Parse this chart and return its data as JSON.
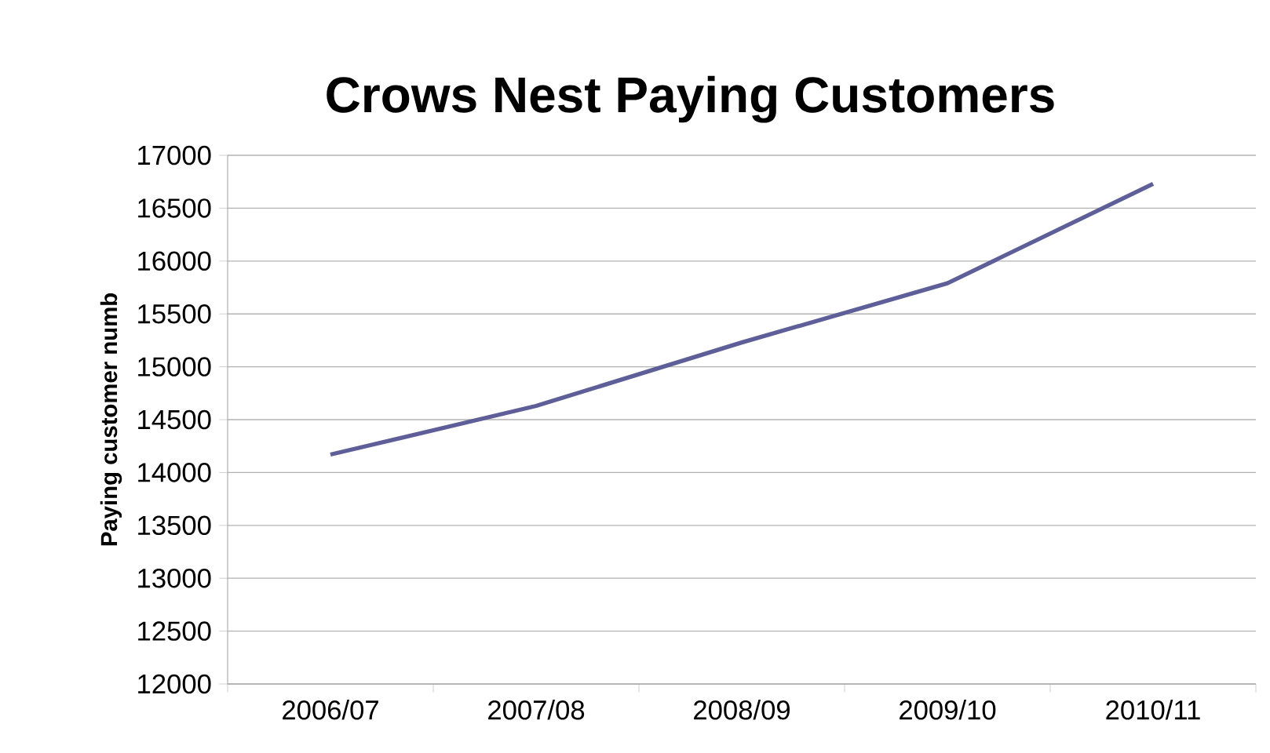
{
  "chart_data": {
    "type": "line",
    "title": "Crows Nest Paying Customers",
    "ylabel": "Paying customer numb",
    "categories": [
      "2006/07",
      "2007/08",
      "2008/09",
      "2009/10",
      "2010/11"
    ],
    "series": [
      {
        "color": "#5e5e99",
        "values": [
          14170,
          14630,
          15230,
          15790,
          16730
        ]
      }
    ],
    "ylim": [
      12000,
      17000
    ],
    "yticks": [
      12000,
      12500,
      13000,
      13500,
      14000,
      14500,
      15000,
      15500,
      16000,
      16500,
      17000
    ],
    "grid": "y",
    "marker": "none",
    "line_style": "solid"
  }
}
